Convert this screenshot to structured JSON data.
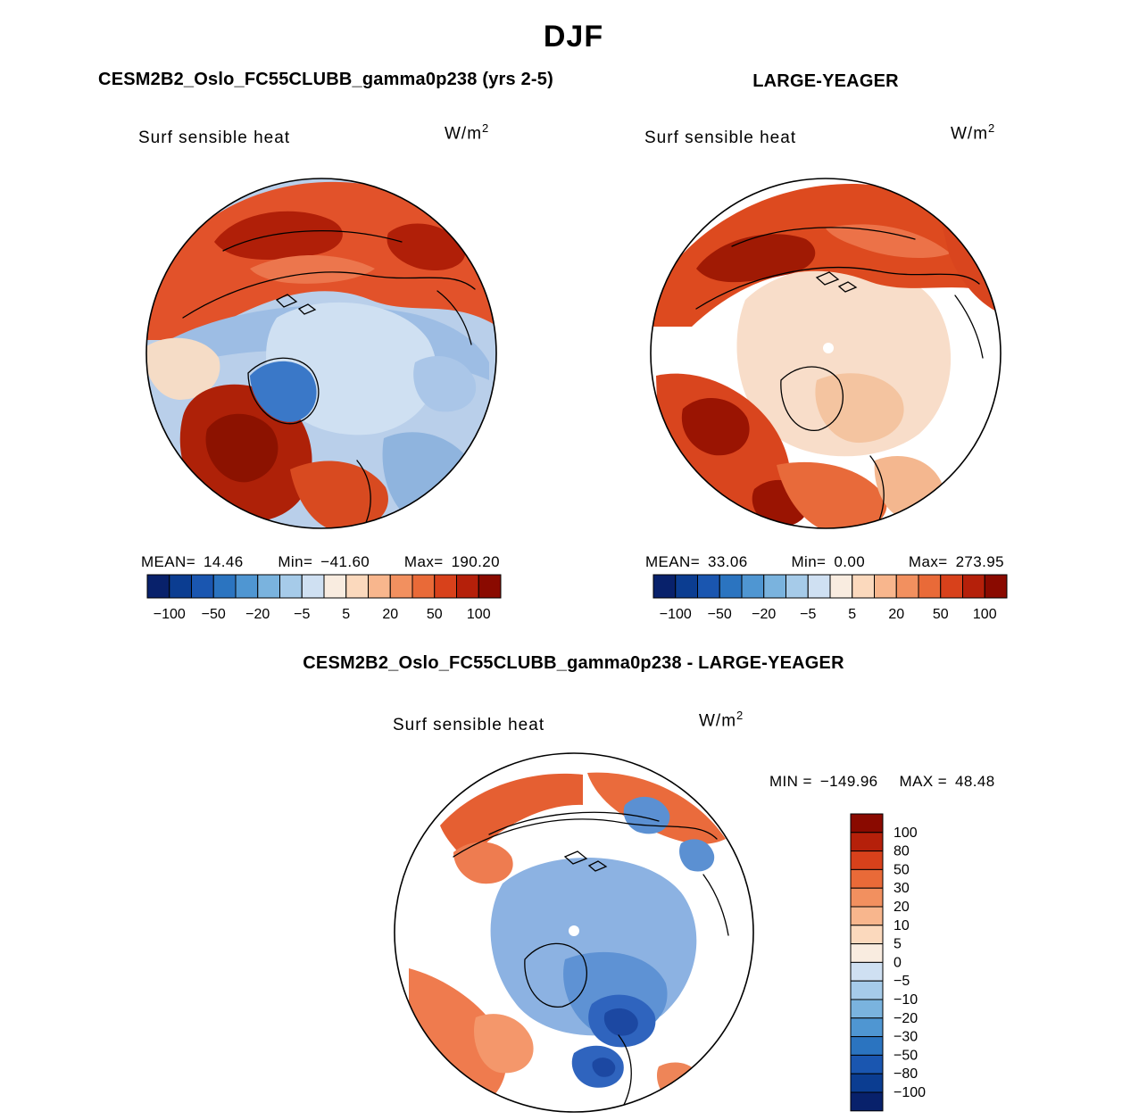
{
  "title": "DJF",
  "panels": {
    "model": {
      "title": "CESM2B2_Oslo_FC55CLUBB_gamma0p238 (yrs 2-5)",
      "field_label": "Surf sensible heat",
      "units_base": "W/m",
      "units_exp": "2",
      "stats": {
        "mean_label": "MEAN=",
        "mean": "14.46",
        "min_label": "Min=",
        "min": "−41.60",
        "max_label": "Max=",
        "max": "190.20"
      }
    },
    "obs": {
      "title": "LARGE-YEAGER",
      "field_label": "Surf sensible heat",
      "units_base": "W/m",
      "units_exp": "2",
      "stats": {
        "mean_label": "MEAN=",
        "mean": "33.06",
        "min_label": "Min=",
        "min": "0.00",
        "max_label": "Max=",
        "max": "273.95"
      }
    },
    "diff": {
      "title": "CESM2B2_Oslo_FC55CLUBB_gamma0p238 - LARGE-YEAGER",
      "field_label": "Surf sensible heat",
      "units_base": "W/m",
      "units_exp": "2",
      "stats": {
        "min_label": "MIN =",
        "min": "−149.96",
        "max_label": "MAX =",
        "max": "48.48"
      }
    }
  },
  "colorbar": {
    "palette_asc": [
      "#08216b",
      "#0b3d91",
      "#1a56b0",
      "#2b74c0",
      "#4f96d2",
      "#7ab3de",
      "#a6cbe9",
      "#cfe0f2",
      "#f9ece0",
      "#fbd9bd",
      "#f8b68d",
      "#f2905f",
      "#e96a38",
      "#d8411b",
      "#b5200a",
      "#8a0a00"
    ],
    "boundaries_asc": [
      "−100",
      "−80",
      "−50",
      "−30",
      "−20",
      "−10",
      "−5",
      "0",
      "5",
      "10",
      "20",
      "30",
      "50",
      "80",
      "100"
    ],
    "h_label_indices": [
      0,
      2,
      4,
      6,
      8,
      10,
      12,
      14
    ]
  },
  "chart_data": [
    {
      "type": "heatmap",
      "projection": "north-polar-stereographic",
      "season": "DJF",
      "title": "CESM2B2_Oslo_FC55CLUBB_gamma0p238 (yrs 2-5)",
      "variable": "Surf sensible heat",
      "units": "W/m^2",
      "stats": {
        "mean": 14.46,
        "min": -41.6,
        "max": 190.2
      },
      "contour_levels": [
        -100,
        -80,
        -50,
        -30,
        -20,
        -10,
        -5,
        0,
        5,
        10,
        20,
        30,
        50,
        80,
        100
      ],
      "colorbar_tick_labels": [
        -100,
        -50,
        -20,
        -5,
        5,
        20,
        50,
        100
      ],
      "colorbar_orientation": "horizontal-below"
    },
    {
      "type": "heatmap",
      "projection": "north-polar-stereographic",
      "season": "DJF",
      "title": "LARGE-YEAGER",
      "variable": "Surf sensible heat",
      "units": "W/m^2",
      "stats": {
        "mean": 33.06,
        "min": 0.0,
        "max": 273.95
      },
      "contour_levels": [
        -100,
        -80,
        -50,
        -30,
        -20,
        -10,
        -5,
        0,
        5,
        10,
        20,
        30,
        50,
        80,
        100
      ],
      "colorbar_tick_labels": [
        -100,
        -50,
        -20,
        -5,
        5,
        20,
        50,
        100
      ],
      "colorbar_orientation": "horizontal-below"
    },
    {
      "type": "heatmap",
      "projection": "north-polar-stereographic",
      "season": "DJF",
      "title": "CESM2B2_Oslo_FC55CLUBB_gamma0p238 - LARGE-YEAGER",
      "variable": "Surf sensible heat",
      "units": "W/m^2",
      "stats": {
        "min": -149.96,
        "max": 48.48
      },
      "contour_levels": [
        -100,
        -80,
        -50,
        -30,
        -20,
        -10,
        -5,
        0,
        5,
        10,
        20,
        30,
        50,
        80,
        100
      ],
      "colorbar_tick_labels": [
        100,
        80,
        50,
        30,
        20,
        10,
        5,
        0,
        -5,
        -10,
        -20,
        -30,
        -50,
        -80,
        -100
      ],
      "colorbar_orientation": "vertical-right"
    }
  ]
}
